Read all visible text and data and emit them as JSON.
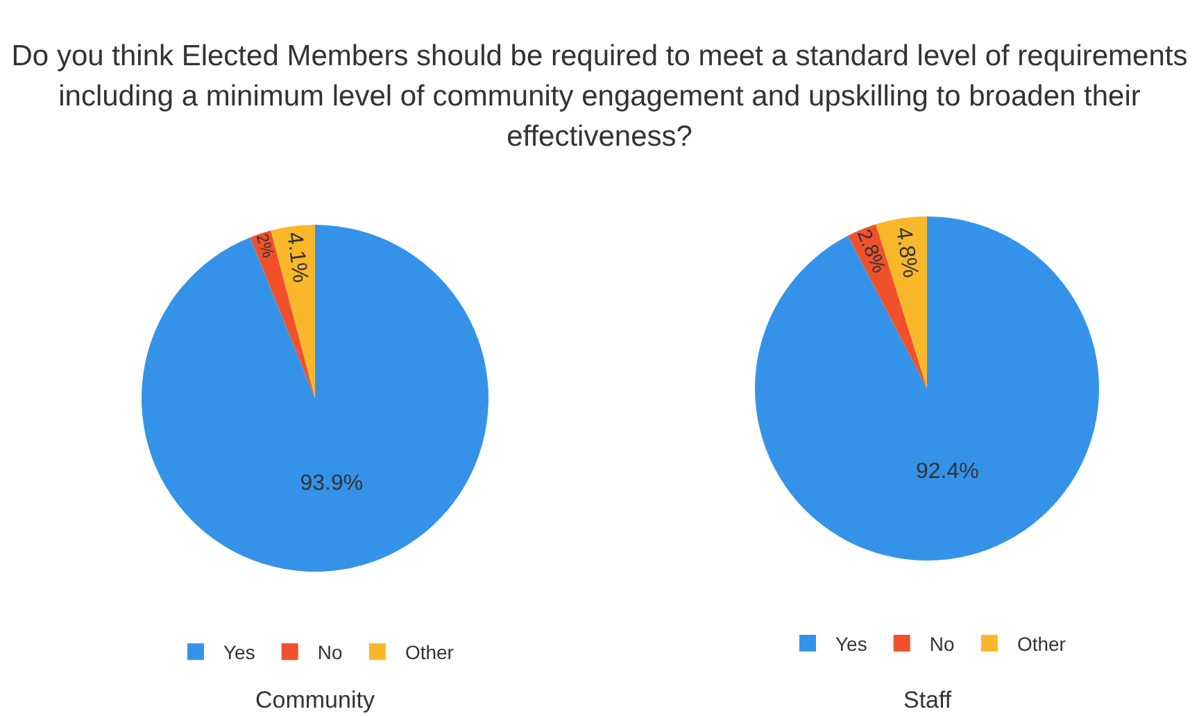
{
  "chart_data": [
    {
      "type": "pie",
      "title": "Do you think Elected Members should be required to meet a standard level of requirements including a minimum level of community engagement and upskilling to broaden their effectiveness?",
      "xlabel": "Community",
      "categories": [
        "Yes",
        "No",
        "Other"
      ],
      "values": [
        93.9,
        2,
        4.1
      ],
      "value_labels": [
        "93.9%",
        "2%",
        "4.1%"
      ],
      "colors": [
        "#3493e9",
        "#f0512b",
        "#f9b82a"
      ],
      "legend": "bottom"
    },
    {
      "type": "pie",
      "xlabel": "Staff",
      "categories": [
        "Yes",
        "No",
        "Other"
      ],
      "values": [
        92.4,
        2.8,
        4.8
      ],
      "value_labels": [
        "92.4%",
        "2.8%",
        "4.8%"
      ],
      "colors": [
        "#3493e9",
        "#f0512b",
        "#f9b82a"
      ],
      "legend": "bottom"
    }
  ]
}
